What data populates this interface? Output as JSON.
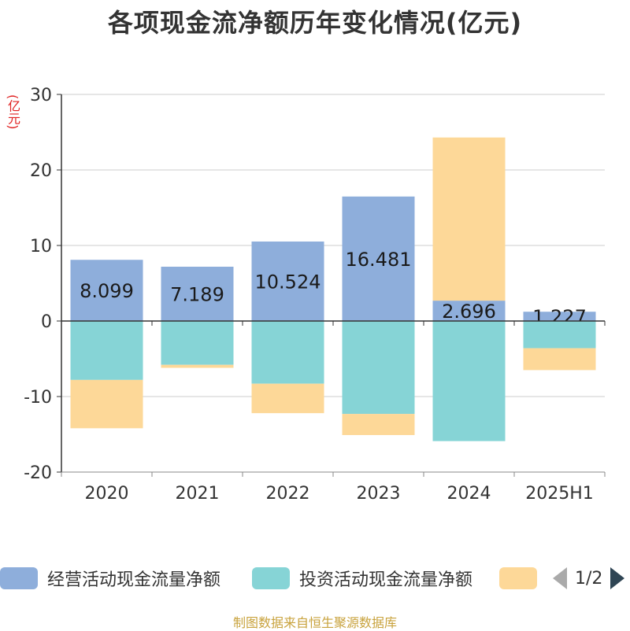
{
  "title": "各项现金流净额历年变化情况(亿元)",
  "unit_label": "(亿元)",
  "source": "制图数据来自恒生聚源数据库",
  "legend": {
    "items": [
      {
        "label": "经营活动现金流量净额",
        "color": "#8eaedb"
      },
      {
        "label": "投资活动现金流量净额",
        "color": "#86d4d6"
      },
      {
        "label": "",
        "color": "#fdd898"
      }
    ],
    "page": "1/2"
  },
  "chart_data": {
    "type": "bar",
    "stacked": true,
    "categories": [
      "2020",
      "2021",
      "2022",
      "2023",
      "2024",
      "2025H1"
    ],
    "ylim": [
      -20,
      30
    ],
    "yticks": [
      30,
      20,
      10,
      0,
      -10,
      -20
    ],
    "grid": true,
    "legend_position": "bottom",
    "series": [
      {
        "name": "经营活动现金流量净额",
        "color": "#8eaedb",
        "values": [
          8.099,
          7.189,
          10.524,
          16.481,
          2.696,
          1.227
        ],
        "labels": [
          "8.099",
          "7.189",
          "10.524",
          "16.481",
          "2.696",
          "1.227"
        ]
      },
      {
        "name": "投资活动现金流量净额",
        "color": "#86d4d6",
        "values": [
          -7.8,
          -5.8,
          -8.3,
          -12.3,
          -15.9,
          -3.6
        ]
      },
      {
        "color": "#fdd898",
        "values": [
          -6.4,
          -0.4,
          -3.9,
          -2.8,
          21.6,
          -2.9
        ]
      }
    ]
  }
}
